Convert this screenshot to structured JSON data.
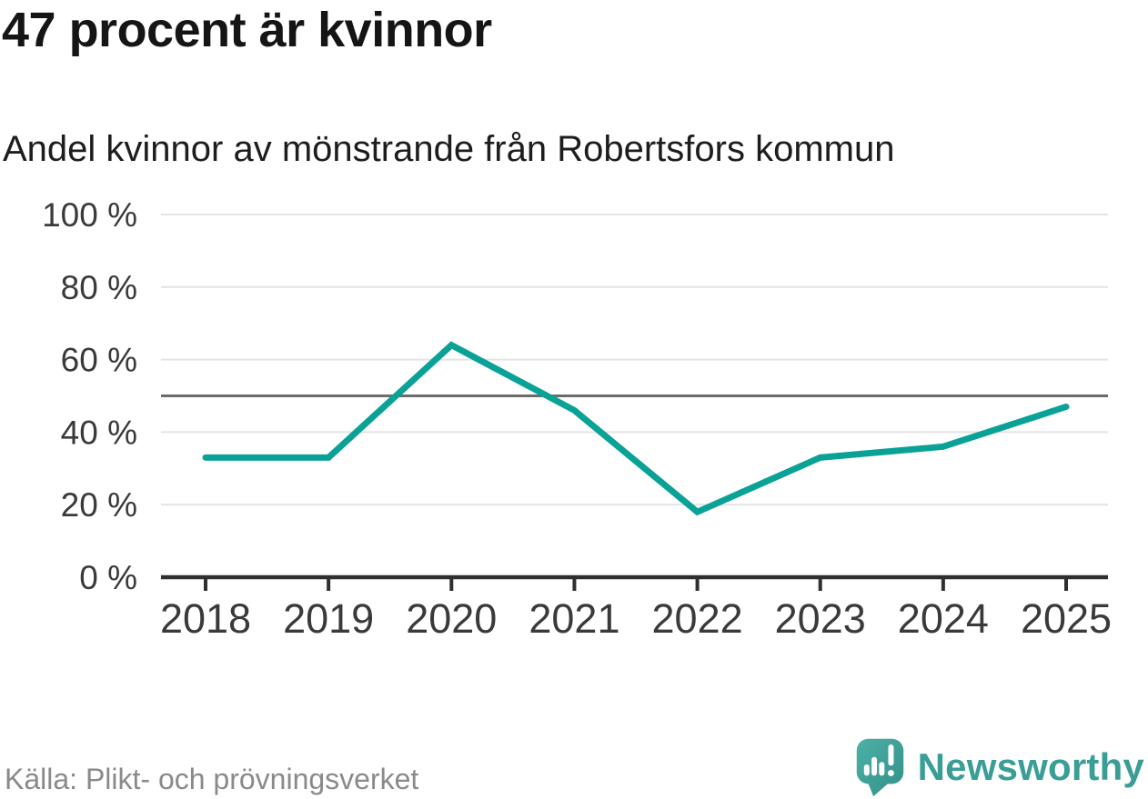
{
  "header": {
    "title": "47 procent är kvinnor",
    "subtitle": "Andel kvinnor av mönstrande från Robertsfors kommun"
  },
  "chart_data": {
    "type": "line",
    "title": "47 procent är kvinnor",
    "subtitle": "Andel kvinnor av mönstrande från Robertsfors kommun",
    "categories": [
      "2018",
      "2019",
      "2020",
      "2021",
      "2022",
      "2023",
      "2024",
      "2025"
    ],
    "series": [
      {
        "name": "Andel kvinnor av mönstrande",
        "values": [
          33,
          33,
          64,
          46,
          18,
          33,
          36,
          47
        ],
        "color": "#0aa296"
      }
    ],
    "xlabel": "",
    "ylabel": "",
    "ylim": [
      0,
      100
    ],
    "yticks": [
      0,
      20,
      40,
      60,
      80,
      100
    ],
    "ytick_labels": [
      "0 %",
      "20 %",
      "40 %",
      "60 %",
      "80 %",
      "100 %"
    ],
    "reference_line": {
      "value": 50
    },
    "grid": "horizontal-only",
    "legend": "none",
    "markers": "none"
  },
  "footer": {
    "source": "Källa: Plikt- och prövningsverket",
    "brand": "Newsworthy"
  },
  "colors": {
    "line": "#0aa296",
    "reference_line": "#6b6b6b",
    "gridline": "#e4e4e4",
    "axis": "#2f2f2f",
    "tick_label": "#3a3a3a",
    "title": "#151515",
    "source": "#8a8a8a",
    "brand_teal": "#3a9d96",
    "logo_teal_light": "#4cb1a6",
    "logo_teal_dark": "#338f89",
    "background": "#ffffff"
  }
}
